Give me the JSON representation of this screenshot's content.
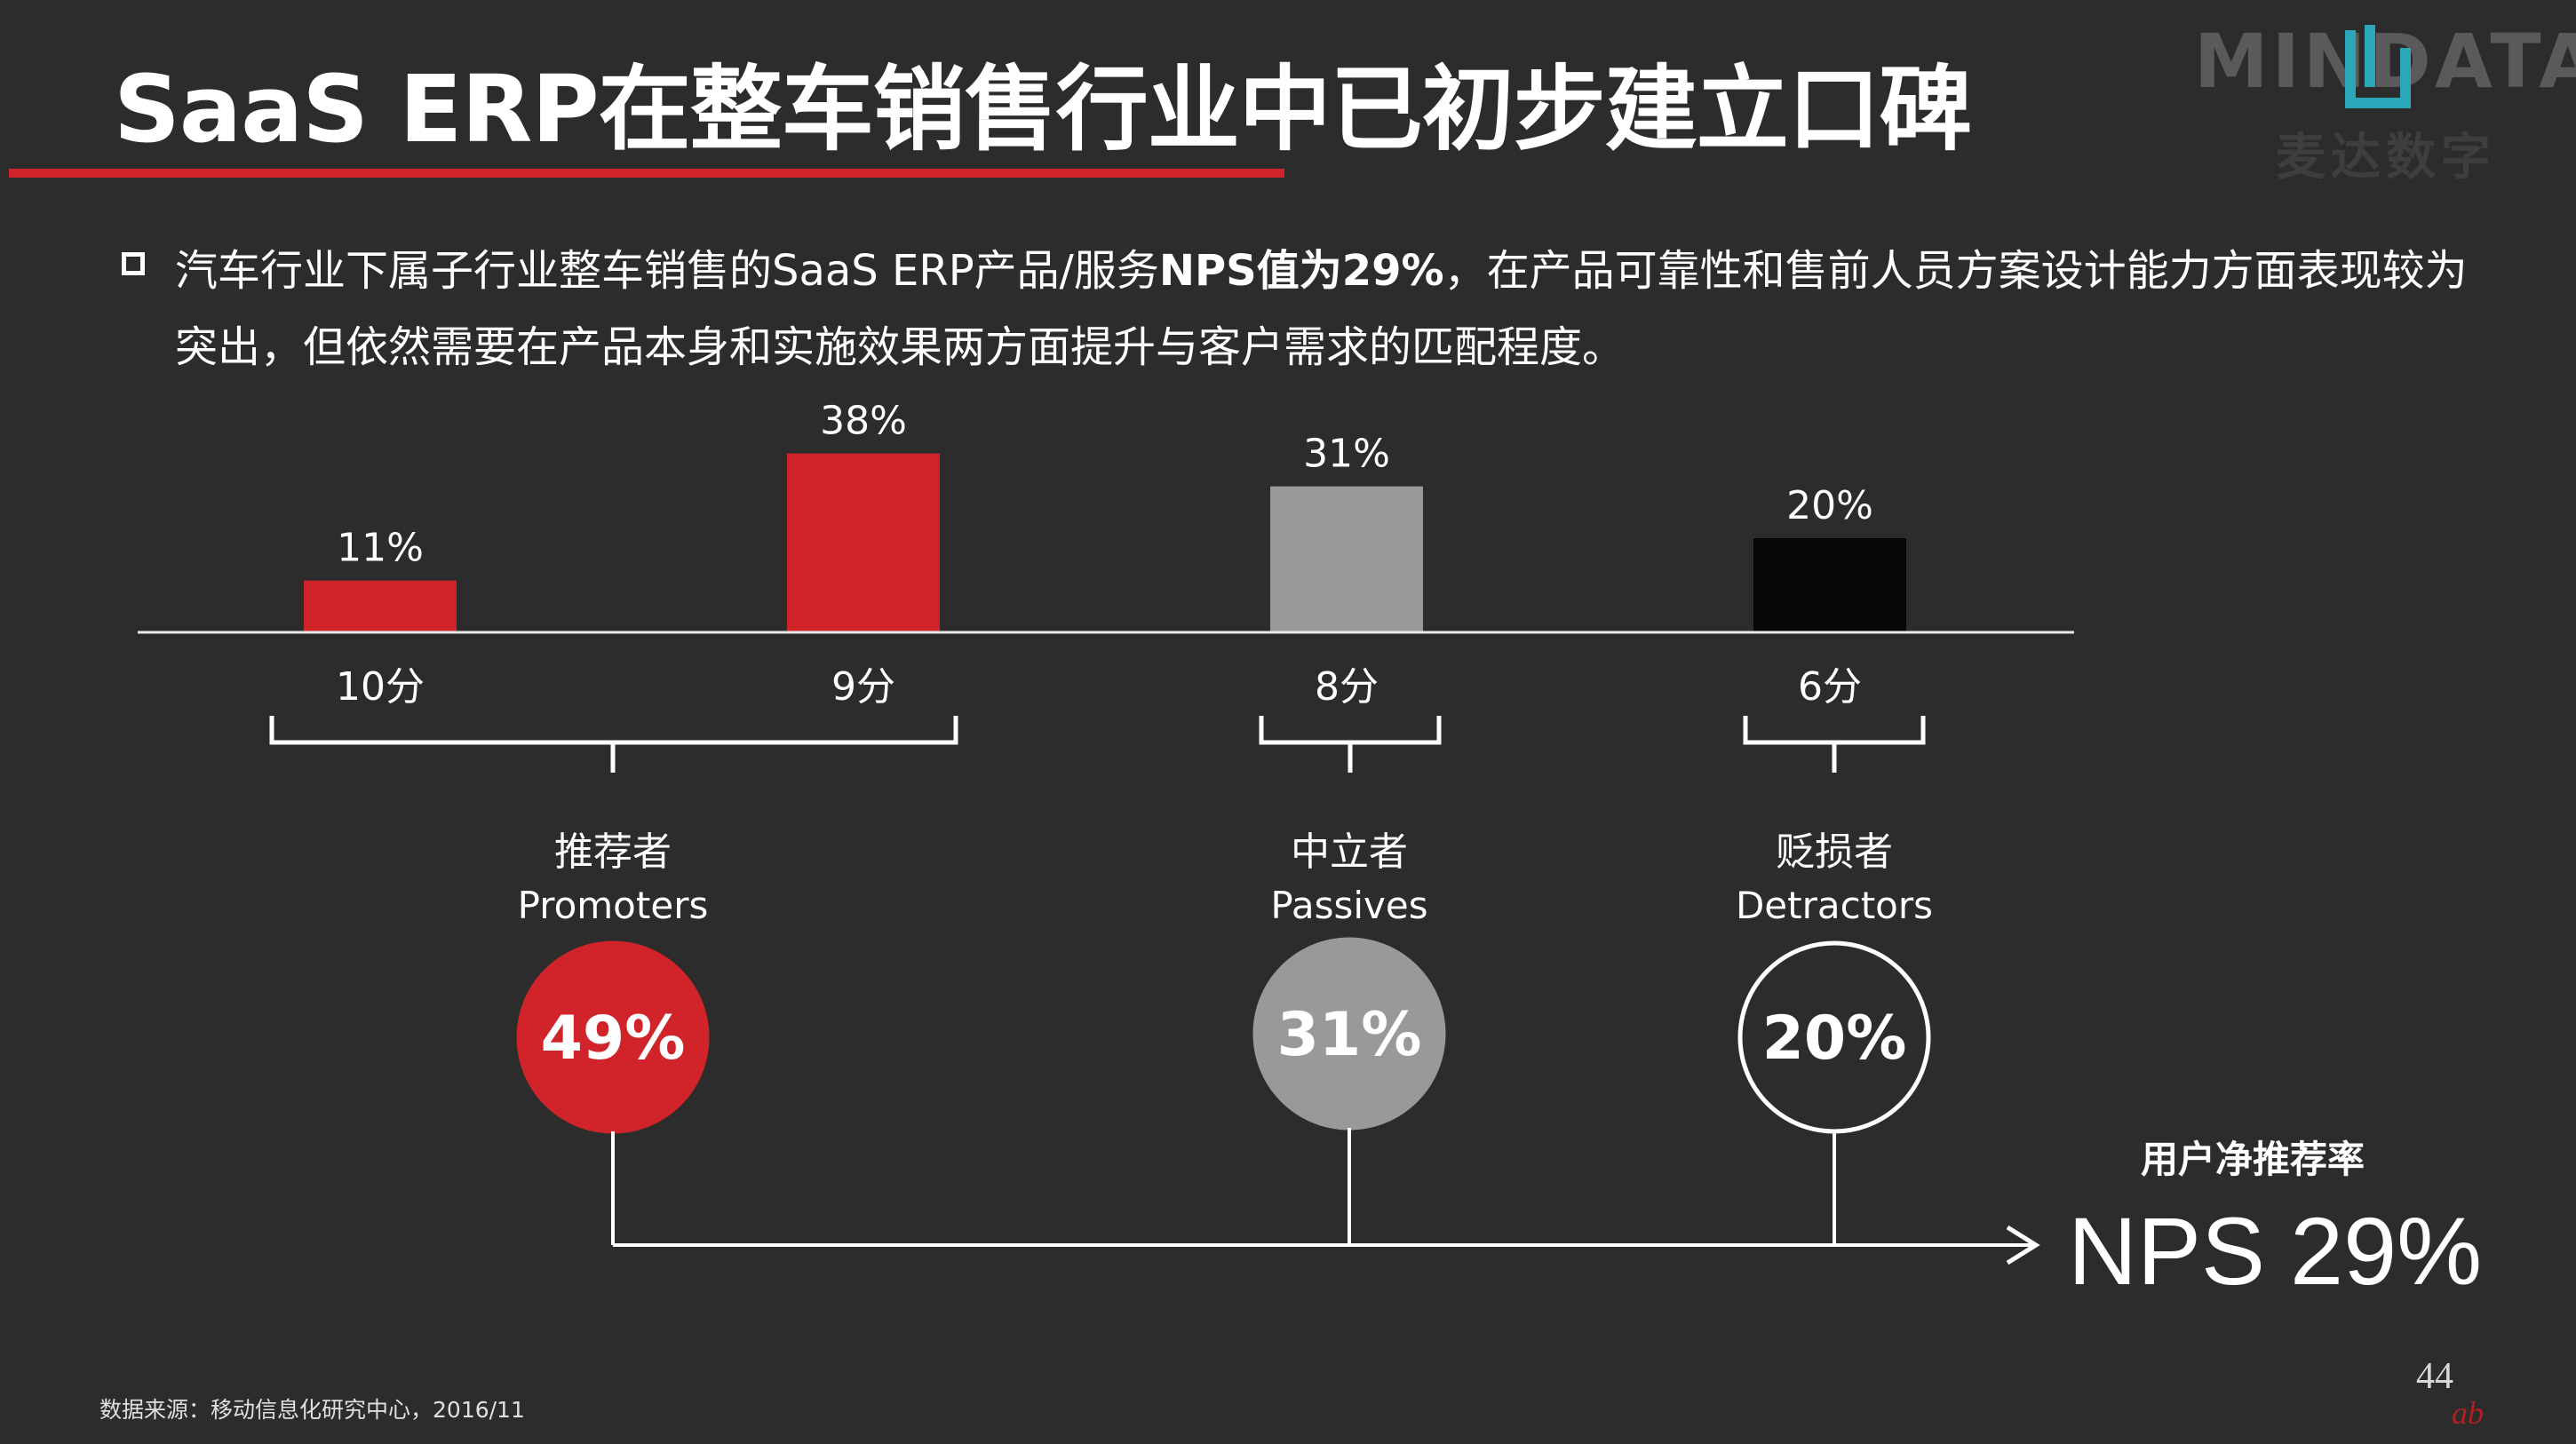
{
  "title": "SaaS ERP在整车销售行业中已初步建立口碑",
  "logo": {
    "text": "MINDATA",
    "subtitle": "麦达数字"
  },
  "summary": {
    "part1": "汽车行业下属子行业整车销售的SaaS ERP产品/服务",
    "highlight": "NPS值为29%",
    "part2": "，在产品可靠性和售前人员方案设计能力方面表现较为突出，但依然需要在产品本身和实施效果两方面提升与客户需求的匹配程度。"
  },
  "chart_data": {
    "type": "bar",
    "categories": [
      "10分",
      "9分",
      "8分",
      "6分"
    ],
    "values": [
      11,
      38,
      31,
      20
    ],
    "value_labels": [
      "11%",
      "38%",
      "31%",
      "20%"
    ],
    "ylim": [
      0,
      40
    ],
    "colors": [
      "#d0232a",
      "#d0232a",
      "#999999",
      "#060606"
    ],
    "groups": [
      {
        "zh": "推荐者",
        "en": "Promoters",
        "value": "49%",
        "fill": "#d0232a",
        "stroke": "#d0232a"
      },
      {
        "zh": "中立者",
        "en": "Passives",
        "value": "31%",
        "fill": "#999999",
        "stroke": "#999999"
      },
      {
        "zh": "贬损者",
        "en": "Detractors",
        "value": "20%",
        "fill": "#2c2c2c",
        "stroke": "#ffffff"
      }
    ]
  },
  "nps": {
    "caption": "用户净推荐率",
    "label": "NPS",
    "value": "29%"
  },
  "source": "数据来源：移动信息化研究中心，2016/11",
  "page_number": "44",
  "corner_logo": "ab"
}
